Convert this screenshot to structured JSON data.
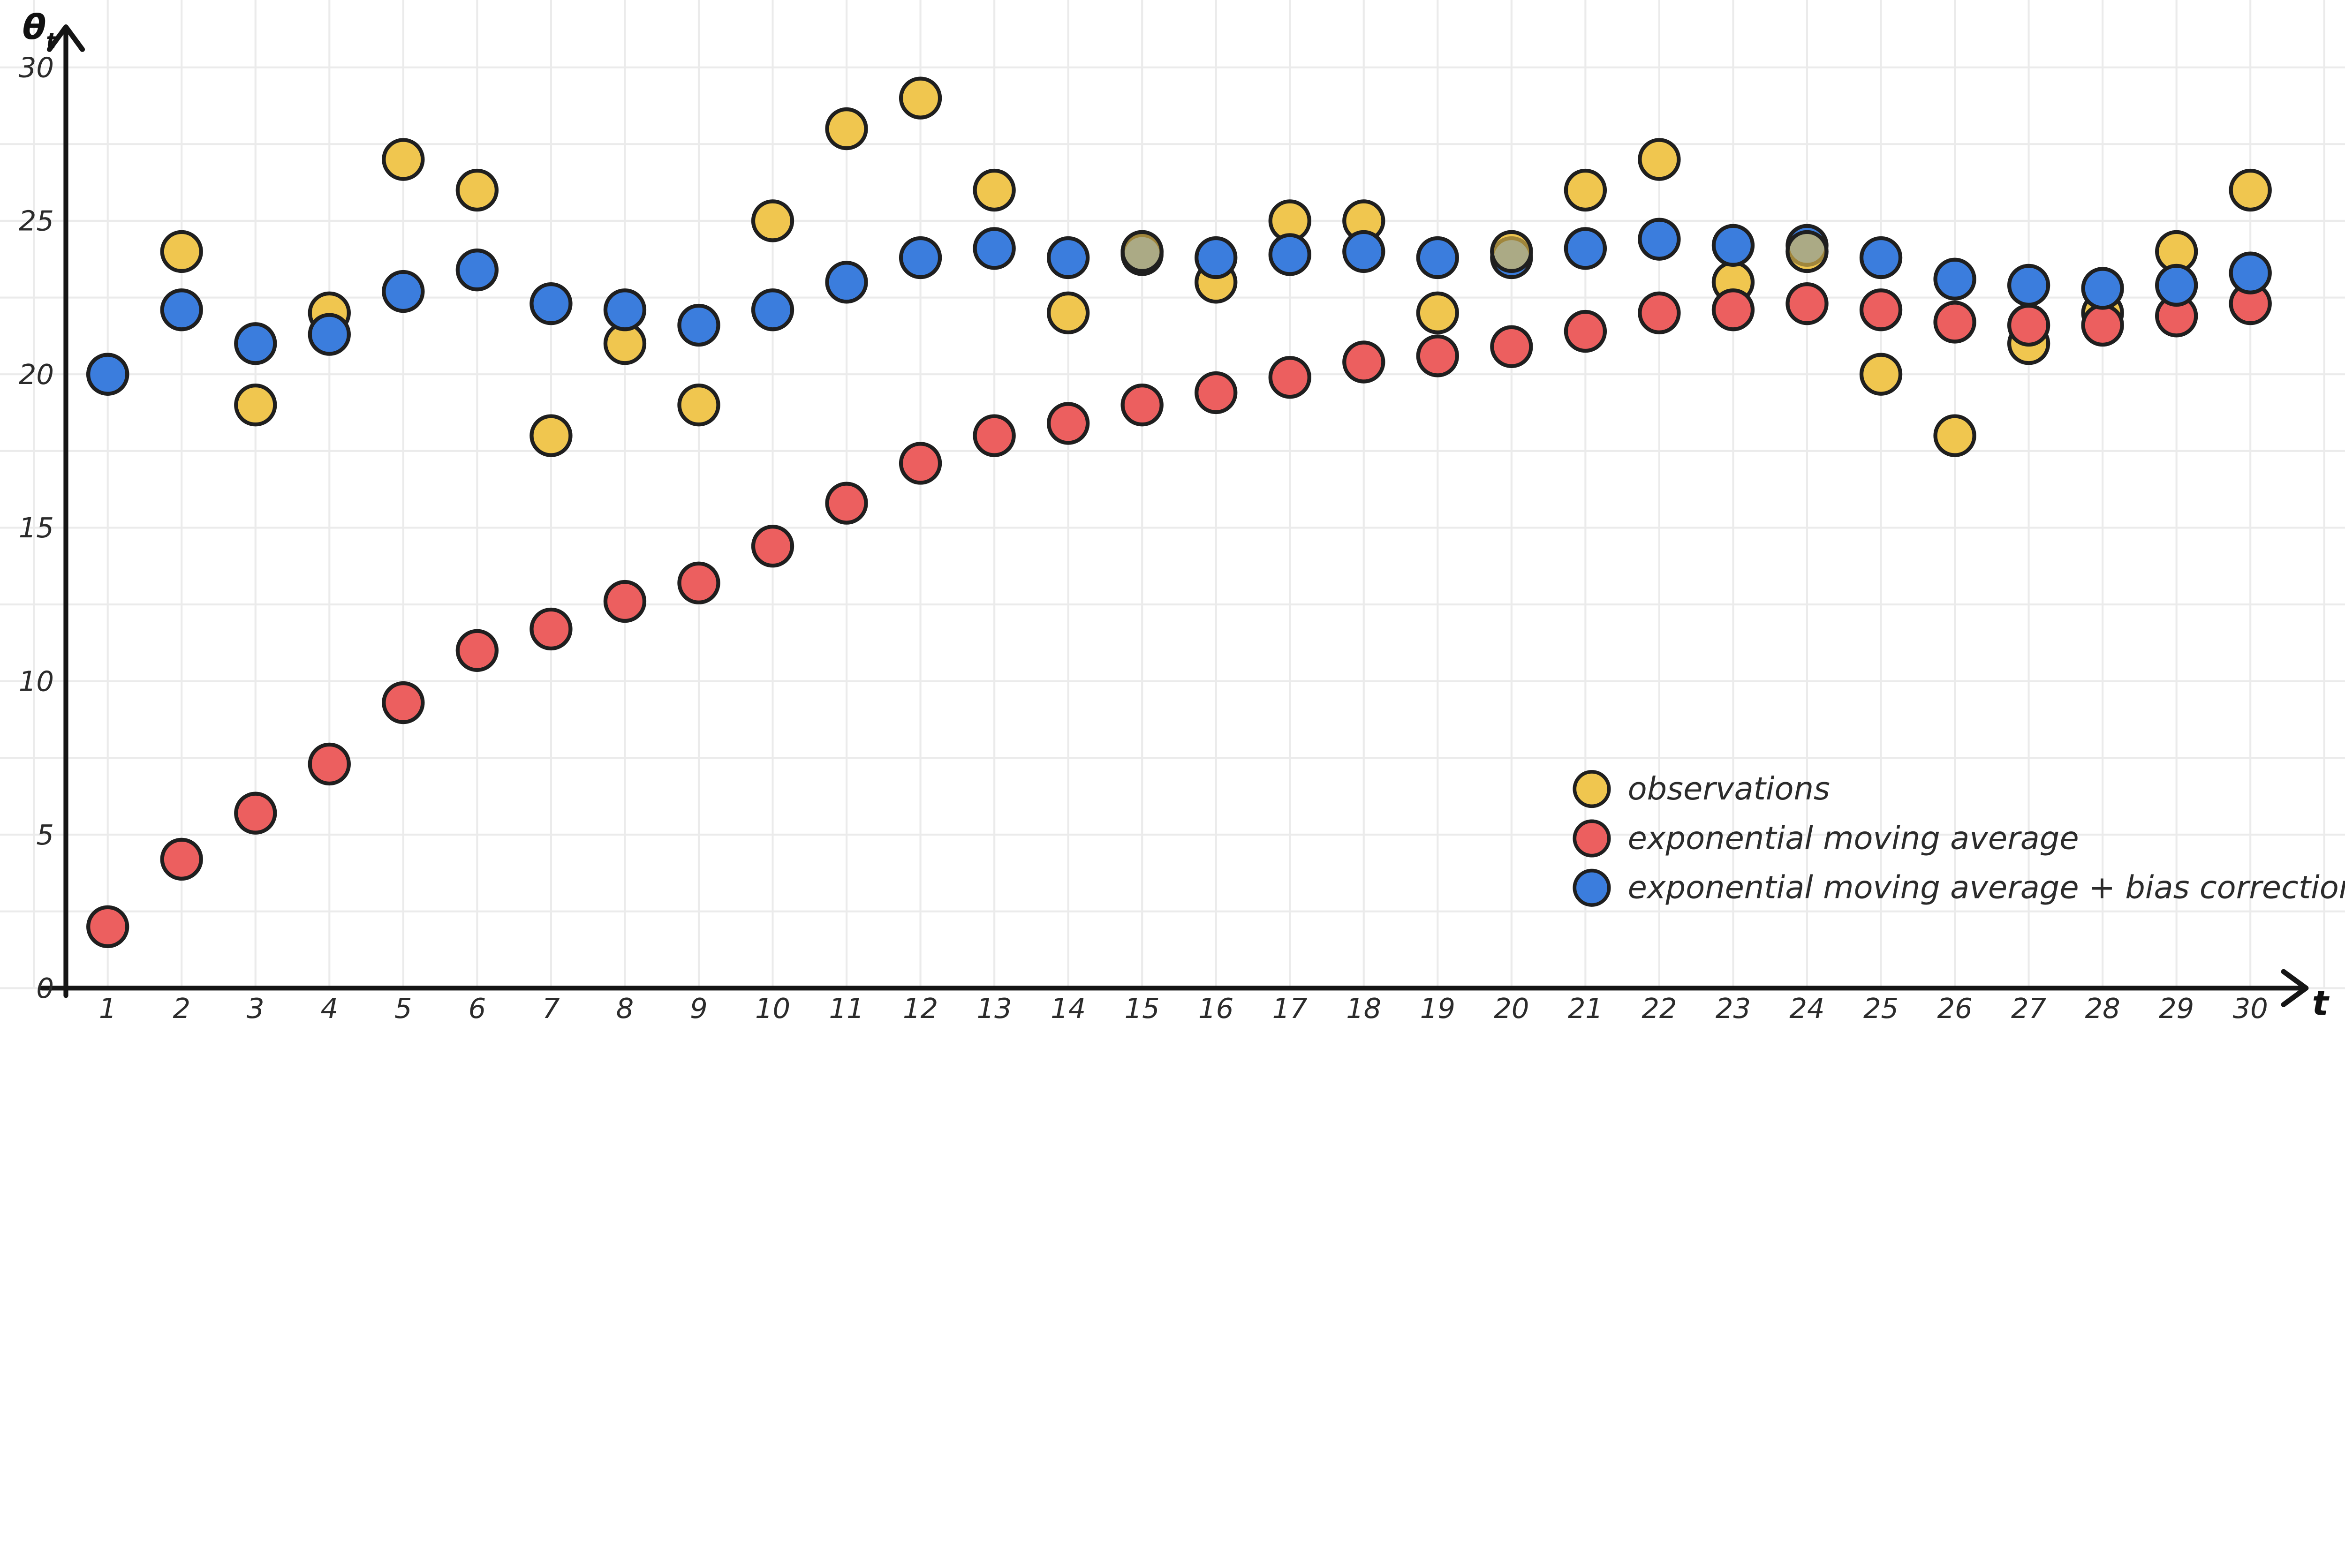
{
  "chart_data": {
    "type": "scatter",
    "title": "",
    "xlabel": "t",
    "ylabel": "θ",
    "ylabel_sub": "t",
    "xlim": [
      0,
      31
    ],
    "ylim": [
      0,
      30
    ],
    "grid": true,
    "legend_position": "bottom-right",
    "y_ticks": [
      0,
      5,
      10,
      15,
      20,
      25,
      30
    ],
    "x_ticks": [
      1,
      2,
      3,
      4,
      5,
      6,
      7,
      8,
      9,
      10,
      11,
      12,
      13,
      14,
      15,
      16,
      17,
      18,
      19,
      20,
      21,
      22,
      23,
      24,
      25,
      26,
      27,
      28,
      29,
      30
    ],
    "x": [
      1,
      2,
      3,
      4,
      5,
      6,
      7,
      8,
      9,
      10,
      11,
      12,
      13,
      14,
      15,
      16,
      17,
      18,
      19,
      20,
      21,
      22,
      23,
      24,
      25,
      26,
      27,
      28,
      29,
      30
    ],
    "series": [
      {
        "name": "observations",
        "color": "#F0C64F",
        "values": [
          20,
          24,
          19,
          22,
          27,
          26,
          18,
          21,
          19,
          25,
          28,
          29,
          26,
          22,
          24,
          23,
          25,
          25,
          22,
          24,
          26,
          27,
          23,
          24,
          20,
          18,
          21,
          22,
          24,
          26
        ]
      },
      {
        "name": "exponential moving average",
        "color": "#EC5F5F",
        "values": [
          2.0,
          4.2,
          5.7,
          7.3,
          9.3,
          11.0,
          11.7,
          12.6,
          13.2,
          14.4,
          15.8,
          17.1,
          18.0,
          18.4,
          19.0,
          19.4,
          19.9,
          20.4,
          20.6,
          20.9,
          21.4,
          22.0,
          22.1,
          22.3,
          22.1,
          21.7,
          21.6,
          21.6,
          21.9,
          22.3
        ]
      },
      {
        "name": "exponential moving average + bias correction",
        "color": "#3B7DDD",
        "values": [
          20.0,
          22.1,
          21.0,
          21.3,
          22.7,
          23.4,
          22.3,
          22.1,
          21.6,
          22.1,
          23.0,
          23.8,
          24.1,
          23.8,
          23.9,
          23.8,
          23.9,
          24.0,
          23.8,
          23.8,
          24.1,
          24.4,
          24.2,
          24.2,
          23.8,
          23.1,
          22.9,
          22.8,
          22.9,
          23.3
        ]
      }
    ],
    "colors": {
      "axis": "#151515",
      "grid": "#ebebeb",
      "marker_stroke": "#1f1f1f",
      "background": "#ffffff"
    }
  }
}
